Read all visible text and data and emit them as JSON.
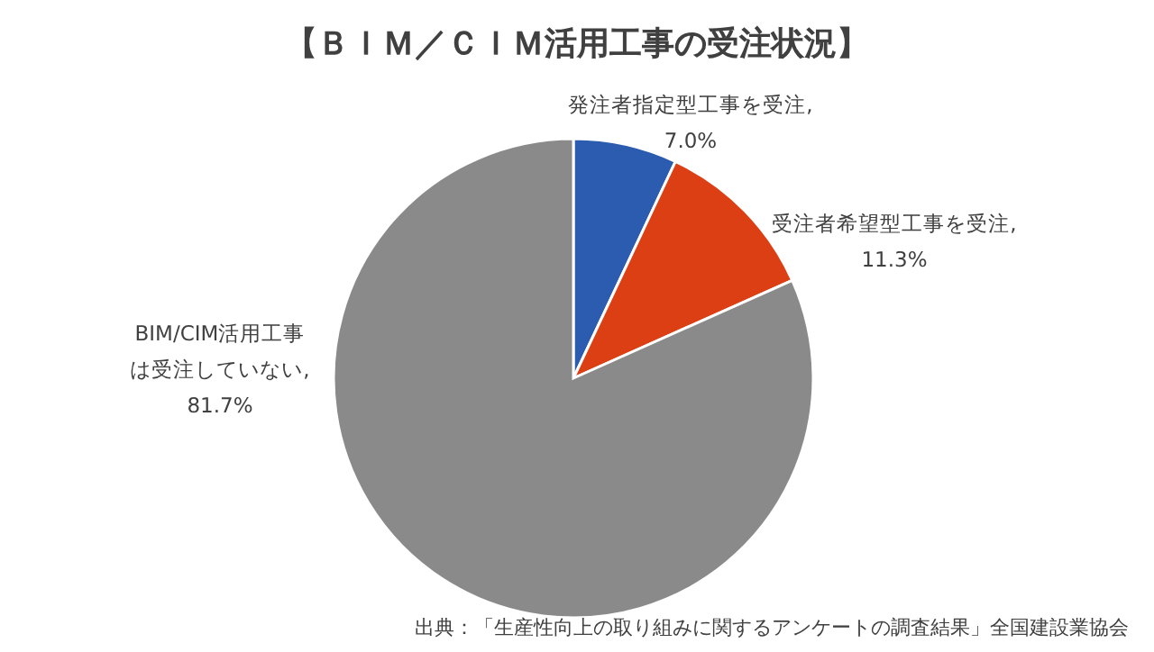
{
  "chart_data": {
    "type": "pie",
    "title": "【ＢＩＭ／ＣＩＭ活用工事の受注状況】",
    "categories": [
      "発注者指定型工事を受注",
      "受注者希望型工事を受注",
      "BIM/CIM活用工事は受注していない"
    ],
    "values": [
      7.0,
      11.3,
      81.7
    ],
    "value_labels": [
      ", 7.0%",
      ", 11.3%",
      ", 81.7%"
    ],
    "colors": [
      "#2b5cb0",
      "#dc3f14",
      "#8a8a8a"
    ],
    "annotations": [
      "出典：「生産性向上の取り組みに関するアンケートの調査結果」全国建設業協会"
    ]
  }
}
